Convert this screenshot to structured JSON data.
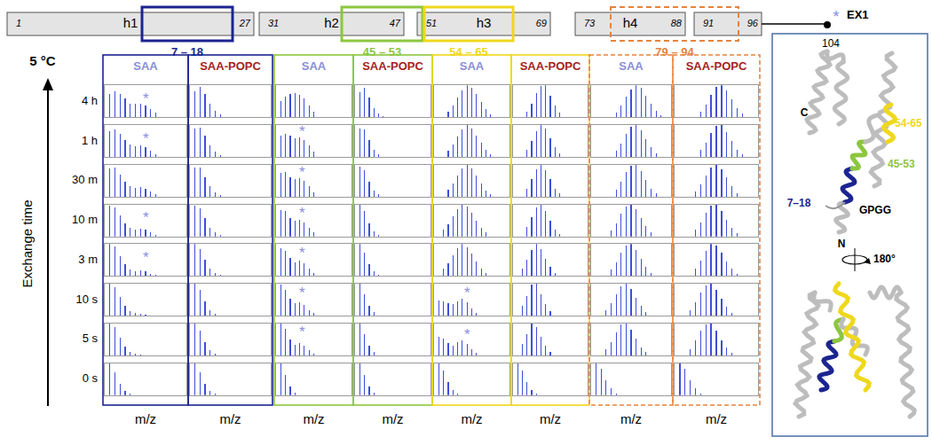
{
  "domain_map": {
    "segments": [
      {
        "labels": [
          "1",
          "27"
        ],
        "name": "h1"
      },
      {
        "labels": [
          "31",
          "47"
        ],
        "name": "h2"
      },
      {
        "labels": [
          "51",
          "69"
        ],
        "name": "h3"
      },
      {
        "labels": [
          "73",
          "88"
        ],
        "name": "h4"
      },
      {
        "labels": [
          "91",
          "96"
        ]
      }
    ],
    "end_label": "104",
    "regions": [
      {
        "label": "7 – 18",
        "color": "#1c2590",
        "line_style": "solid"
      },
      {
        "label": "45 – 53",
        "color": "#8cc63f",
        "line_style": "solid"
      },
      {
        "label": "54 – 65",
        "color": "#efd81c",
        "line_style": "solid"
      },
      {
        "label": "79 – 94",
        "color": "#e8833a",
        "line_style": "dashed"
      }
    ]
  },
  "left": {
    "temperature": "5 °C",
    "axis_label": "Exchange time"
  },
  "legend": {
    "symbol": "*",
    "label": "EX1",
    "color": "#8a8ee0"
  },
  "chart_data": {
    "type": "bar",
    "x_label": "m/z",
    "color": "#3c4ed8",
    "xlim": [
      0,
      16
    ],
    "ylim": [
      0,
      100
    ],
    "tick_labels": false,
    "grid": false,
    "times": [
      "0 s",
      "5 s",
      "10 s",
      "3 m",
      "10 m",
      "30 m",
      "1 h",
      "4 h"
    ],
    "panels": [
      {
        "region": "7 – 18",
        "sample": "SAA",
        "sample_color": "#8a8ed8",
        "spectra": [
          {
            "start": 1,
            "values": [
              100,
              72,
              35,
              12,
              4
            ]
          },
          {
            "start": 1,
            "values": [
              100,
              88,
              55,
              28,
              12,
              6,
              4
            ]
          },
          {
            "start": 1,
            "values": [
              100,
              90,
              58,
              30,
              14,
              8,
              6,
              3
            ]
          },
          {
            "start": 1,
            "values": [
              100,
              92,
              62,
              36,
              20,
              16,
              18,
              14,
              8,
              4
            ]
          },
          {
            "start": 1,
            "values": [
              95,
              90,
              66,
              42,
              26,
              22,
              24,
              20,
              12,
              6
            ]
          },
          {
            "start": 1,
            "values": [
              88,
              90,
              70,
              48,
              32,
              28,
              30,
              26,
              16,
              8
            ]
          },
          {
            "start": 1,
            "values": [
              80,
              86,
              72,
              52,
              38,
              34,
              36,
              30,
              20,
              10
            ]
          },
          {
            "start": 1,
            "values": [
              72,
              82,
              74,
              58,
              44,
              42,
              44,
              38,
              26,
              14
            ]
          }
        ],
        "ex1": [
          {
            "time": "3 m",
            "x": 8,
            "y": 58
          },
          {
            "time": "10 m",
            "x": 8,
            "y": 58
          },
          {
            "time": "1 h",
            "x": 8,
            "y": 58
          },
          {
            "time": "4 h",
            "x": 8,
            "y": 58
          }
        ]
      },
      {
        "region": "7 – 18",
        "sample": "SAA-POPC",
        "sample_color": "#a5231b",
        "spectra": [
          {
            "start": 1,
            "values": [
              100,
              72,
              35,
              12,
              4
            ]
          },
          {
            "start": 1,
            "values": [
              100,
              78,
              42,
              16,
              6
            ]
          },
          {
            "start": 1,
            "values": [
              100,
              80,
              45,
              18,
              7
            ]
          },
          {
            "start": 1,
            "values": [
              100,
              84,
              52,
              24,
              10,
              4
            ]
          },
          {
            "start": 1,
            "values": [
              96,
              88,
              58,
              28,
              12,
              5
            ]
          },
          {
            "start": 1,
            "values": [
              92,
              90,
              62,
              32,
              14,
              6
            ]
          },
          {
            "start": 1,
            "values": [
              88,
              92,
              66,
              36,
              16,
              7
            ]
          },
          {
            "start": 1,
            "values": [
              82,
              94,
              72,
              42,
              20,
              9
            ]
          }
        ],
        "ex1": []
      },
      {
        "region": "45 – 53",
        "sample": "SAA",
        "sample_color": "#8a8ed8",
        "spectra": [
          {
            "start": 1,
            "values": [
              100,
              62,
              26,
              8
            ]
          },
          {
            "start": 1,
            "values": [
              100,
              82,
              50,
              34,
              38,
              30,
              16,
              6
            ]
          },
          {
            "start": 1,
            "values": [
              96,
              80,
              52,
              38,
              42,
              34,
              18,
              8
            ]
          },
          {
            "start": 1,
            "values": [
              88,
              80,
              56,
              42,
              48,
              40,
              24,
              10
            ]
          },
          {
            "start": 1,
            "values": [
              82,
              78,
              58,
              48,
              52,
              44,
              28,
              12
            ]
          },
          {
            "start": 1,
            "values": [
              74,
              76,
              62,
              54,
              58,
              50,
              32,
              14
            ]
          },
          {
            "start": 1,
            "values": [
              66,
              72,
              66,
              60,
              62,
              54,
              36,
              16
            ]
          },
          {
            "start": 1,
            "values": [
              52,
              66,
              74,
              76,
              70,
              58,
              38,
              18
            ]
          }
        ],
        "ex1": [
          {
            "time": "5 s",
            "x": 5.5,
            "y": 72
          },
          {
            "time": "10 s",
            "x": 5.5,
            "y": 72
          },
          {
            "time": "3 m",
            "x": 5.5,
            "y": 72
          },
          {
            "time": "10 m",
            "x": 5.5,
            "y": 72
          },
          {
            "time": "30 m",
            "x": 5.5,
            "y": 76
          },
          {
            "time": "1 h",
            "x": 5.5,
            "y": 80
          }
        ]
      },
      {
        "region": "45 – 53",
        "sample": "SAA-POPC",
        "sample_color": "#a5231b",
        "spectra": [
          {
            "start": 1,
            "values": [
              100,
              62,
              26,
              8
            ]
          },
          {
            "start": 1,
            "values": [
              100,
              66,
              30,
              10
            ]
          },
          {
            "start": 1,
            "values": [
              100,
              68,
              32,
              11
            ]
          },
          {
            "start": 1,
            "values": [
              100,
              74,
              38,
              14,
              5
            ]
          },
          {
            "start": 1,
            "values": [
              98,
              78,
              42,
              16,
              6
            ]
          },
          {
            "start": 1,
            "values": [
              94,
              82,
              48,
              20,
              7
            ]
          },
          {
            "start": 1,
            "values": [
              90,
              86,
              52,
              24,
              9
            ]
          },
          {
            "start": 1,
            "values": [
              80,
              92,
              62,
              30,
              12,
              4
            ]
          }
        ],
        "ex1": []
      },
      {
        "region": "54 – 65",
        "sample": "SAA",
        "sample_color": "#8a8ed8",
        "spectra": [
          {
            "start": 1,
            "values": [
              100,
              76,
              40,
              15,
              5
            ]
          },
          {
            "start": 1,
            "values": [
              58,
              52,
              38,
              30,
              40,
              46,
              36,
              20,
              8
            ]
          },
          {
            "start": 1,
            "values": [
              48,
              46,
              38,
              36,
              46,
              52,
              42,
              24,
              10
            ]
          },
          {
            "start": 2,
            "values": [
              22,
              40,
              64,
              86,
              100,
              90,
              70,
              46,
              24,
              10
            ]
          },
          {
            "start": 2,
            "values": [
              20,
              38,
              62,
              84,
              100,
              92,
              74,
              50,
              28,
              12
            ]
          },
          {
            "start": 3,
            "values": [
              22,
              42,
              66,
              88,
              100,
              88,
              66,
              42,
              20,
              8
            ]
          },
          {
            "start": 3,
            "values": [
              20,
              40,
              64,
              86,
              100,
              90,
              68,
              44,
              22,
              9
            ]
          },
          {
            "start": 3,
            "values": [
              18,
              38,
              62,
              84,
              100,
              92,
              72,
              48,
              26,
              10
            ]
          }
        ],
        "ex1": [
          {
            "time": "5 s",
            "x": 7,
            "y": 66
          },
          {
            "time": "10 s",
            "x": 7,
            "y": 70
          }
        ]
      },
      {
        "region": "54 – 65",
        "sample": "SAA-POPC",
        "sample_color": "#a5231b",
        "spectra": [
          {
            "start": 1,
            "values": [
              100,
              76,
              40,
              15,
              5
            ]
          },
          {
            "start": 2,
            "values": [
              36,
              66,
              100,
              88,
              58,
              30,
              12
            ]
          },
          {
            "start": 2,
            "values": [
              32,
              62,
              96,
              100,
              66,
              36,
              14
            ]
          },
          {
            "start": 2,
            "values": [
              24,
              50,
              82,
              100,
              84,
              54,
              28,
              10
            ]
          },
          {
            "start": 3,
            "values": [
              30,
              60,
              90,
              100,
              78,
              48,
              22,
              8
            ]
          },
          {
            "start": 3,
            "values": [
              26,
              54,
              86,
              100,
              84,
              54,
              26,
              10
            ]
          },
          {
            "start": 3,
            "values": [
              22,
              50,
              82,
              100,
              88,
              58,
              30,
              12
            ]
          },
          {
            "start": 3,
            "values": [
              18,
              44,
              76,
              98,
              100,
              68,
              38,
              16
            ]
          }
        ],
        "ex1": []
      },
      {
        "region": "79 – 94",
        "sample": "SAA",
        "sample_color": "#8a8ed8",
        "spectra": [
          {
            "start": 1,
            "values": [
              100,
              82,
              46,
              20,
              6
            ]
          },
          {
            "start": 3,
            "values": [
              18,
              42,
              72,
              96,
              100,
              80,
              52,
              26,
              10
            ]
          },
          {
            "start": 3,
            "values": [
              16,
              38,
              68,
              92,
              100,
              84,
              56,
              30,
              12
            ]
          },
          {
            "start": 4,
            "values": [
              20,
              44,
              74,
              96,
              100,
              82,
              54,
              28,
              10
            ]
          },
          {
            "start": 4,
            "values": [
              18,
              40,
              70,
              92,
              100,
              86,
              58,
              32,
              12
            ]
          },
          {
            "start": 5,
            "values": [
              22,
              46,
              76,
              98,
              100,
              80,
              52,
              26,
              10
            ]
          },
          {
            "start": 5,
            "values": [
              20,
              42,
              72,
              94,
              100,
              84,
              56,
              30,
              12
            ]
          },
          {
            "start": 5,
            "values": [
              16,
              36,
              64,
              88,
              100,
              92,
              68,
              42,
              20,
              8
            ]
          }
        ],
        "ex1": []
      },
      {
        "region": "79 – 94",
        "sample": "SAA-POPC",
        "sample_color": "#a5231b",
        "spectra": [
          {
            "start": 1,
            "values": [
              100,
              82,
              46,
              20,
              6
            ]
          },
          {
            "start": 3,
            "values": [
              20,
              46,
              76,
              98,
              100,
              78,
              48,
              24,
              8
            ]
          },
          {
            "start": 3,
            "values": [
              18,
              42,
              72,
              94,
              100,
              82,
              54,
              28,
              10
            ]
          },
          {
            "start": 4,
            "values": [
              22,
              48,
              78,
              100,
              96,
              74,
              46,
              22,
              8
            ]
          },
          {
            "start": 4,
            "values": [
              20,
              44,
              74,
              96,
              100,
              80,
              52,
              26,
              10
            ]
          },
          {
            "start": 4,
            "values": [
              16,
              38,
              66,
              90,
              100,
              86,
              60,
              32,
              12
            ]
          },
          {
            "start": 5,
            "values": [
              22,
              46,
              76,
              98,
              100,
              78,
              50,
              24,
              9
            ]
          },
          {
            "start": 5,
            "values": [
              18,
              40,
              70,
              94,
              100,
              84,
              56,
              30,
              11
            ]
          }
        ],
        "ex1": []
      }
    ]
  },
  "structure": {
    "labels": [
      {
        "text": "C",
        "color": "#000000"
      },
      {
        "text": "N",
        "color": "#000000"
      },
      {
        "text": "54-65",
        "color": "#efd81c"
      },
      {
        "text": "45-53",
        "color": "#8cc63f"
      },
      {
        "text": "7–18",
        "color": "#1c2590"
      },
      {
        "text": "GPGG",
        "color": "#000000"
      },
      {
        "text": "180°",
        "color": "#000000"
      }
    ]
  }
}
